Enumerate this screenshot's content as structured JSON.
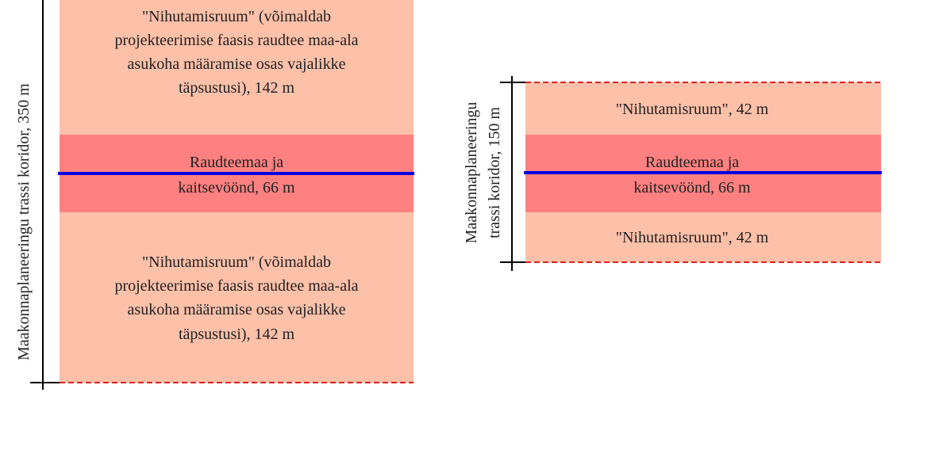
{
  "left": {
    "axis_label": "Maakonnaplaneeringu trassi koridor, 350 m",
    "top_zone": [
      "\"Nihutamisruum\" (võimaldab",
      "projekteerimise faasis raudtee maa-ala",
      "asukoha määramise osas vajalikke",
      "täpsustusi), 142 m"
    ],
    "middle_zone": [
      "Raudteemaa ja",
      "kaitsevöönd, 66 m"
    ],
    "bottom_zone": [
      "\"Nihutamisruum\" (võimaldab",
      "projekteerimise faasis raudtee maa-ala",
      "asukoha määramise osas vajalikke",
      "täpsustusi), 142 m"
    ]
  },
  "right": {
    "axis_label": [
      "Maakonnaplaneeringu",
      "trassi koridor, 150 m"
    ],
    "top_zone": "\"Nihutamisruum\", 42 m",
    "middle_zone": [
      "Raudteemaa ja",
      "kaitsevöönd, 66 m"
    ],
    "bottom_zone": "\"Nihutamisruum\", 42 m"
  }
}
